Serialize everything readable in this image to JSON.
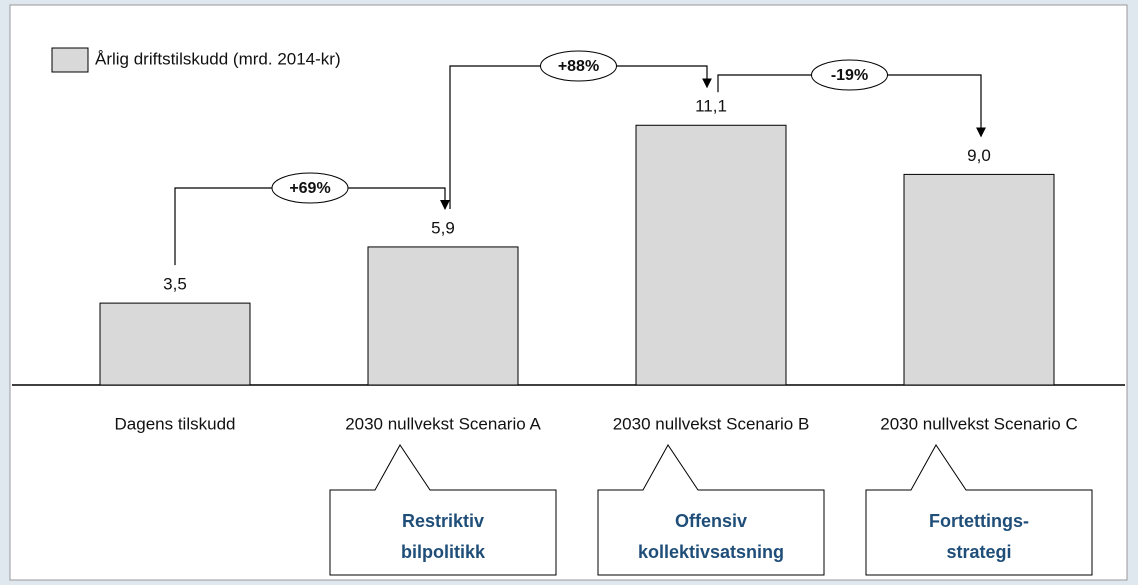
{
  "chart_data": {
    "type": "bar",
    "categories": [
      "Dagens tilskudd",
      "2030 nullvekst Scenario A",
      "2030 nullvekst Scenario B",
      "2030 nullvekst Scenario C"
    ],
    "series": [
      {
        "name": "Årlig driftstilskudd (mrd. 2014-kr)",
        "color": "#d9d9d9",
        "values": [
          3.5,
          5.9,
          11.1,
          9.0
        ],
        "value_labels": [
          "3,5",
          "5,9",
          "11,1",
          "9,0"
        ]
      }
    ],
    "annotations": [
      "+69%",
      "+88%",
      "-19%"
    ],
    "callouts": [
      [
        "Restriktiv",
        "bilpolitikk"
      ],
      [
        "Offensiv",
        "kollektivsatsning"
      ],
      [
        "Fortettings-",
        "strategi"
      ]
    ]
  }
}
